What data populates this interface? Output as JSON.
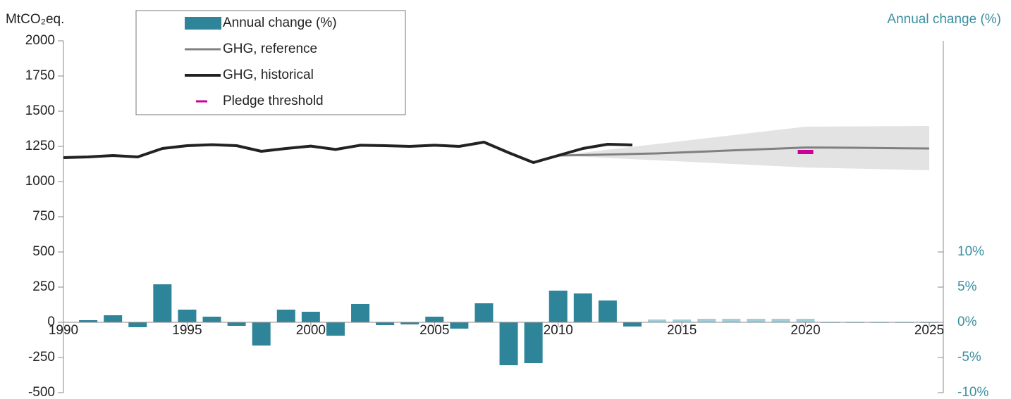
{
  "chart_data": {
    "type": "combo",
    "y_label": "MtCO₂eq.",
    "y2_label": "Annual change (%)",
    "x": [
      1990,
      1991,
      1992,
      1993,
      1994,
      1995,
      1996,
      1997,
      1998,
      1999,
      2000,
      2001,
      2002,
      2003,
      2004,
      2005,
      2006,
      2007,
      2008,
      2009,
      2010,
      2011,
      2012,
      2013,
      2014,
      2015,
      2016,
      2017,
      2018,
      2019,
      2020,
      2021,
      2022,
      2023,
      2024,
      2025
    ],
    "xlim": [
      1990,
      2025
    ],
    "xticks": [
      1990,
      1995,
      2000,
      2005,
      2010,
      2015,
      2020,
      2025
    ],
    "ylim": [
      -500,
      2000
    ],
    "yticks": [
      -500,
      -250,
      0,
      250,
      500,
      750,
      1000,
      1250,
      1500,
      1750,
      2000
    ],
    "y2lim": [
      -10,
      40
    ],
    "y2ticks": [
      {
        "value": -10,
        "label": "-10%"
      },
      {
        "value": -5,
        "label": "-5%"
      },
      {
        "value": 0,
        "label": "0%"
      },
      {
        "value": 5,
        "label": "5%"
      },
      {
        "value": 10,
        "label": "10%"
      }
    ],
    "band": {
      "color": "#e3e3e3",
      "x": [
        2010,
        2020,
        2025
      ],
      "lower": [
        1185,
        1100,
        1080
      ],
      "upper": [
        1185,
        1390,
        1395
      ]
    },
    "series": [
      {
        "name": "Annual change (%)",
        "type": "bar",
        "axis": "y2",
        "color": "#2e8499",
        "colors": [
          "#2e8499",
          "#2e8499",
          "#2e8499",
          "#2e8499",
          "#2e8499",
          "#2e8499",
          "#2e8499",
          "#2e8499",
          "#2e8499",
          "#2e8499",
          "#2e8499",
          "#2e8499",
          "#2e8499",
          "#2e8499",
          "#2e8499",
          "#2e8499",
          "#2e8499",
          "#2e8499",
          "#2e8499",
          "#2e8499",
          "#2e8499",
          "#2e8499",
          "#2e8499",
          "#2e8499",
          "#9dcfdc",
          "#9dcfdc",
          "#9dcfdc",
          "#9dcfdc",
          "#9dcfdc",
          "#9dcfdc",
          "#9dcfdc",
          "#9dcfdc",
          "#9dcfdc",
          "#9dcfdc",
          "#9dcfdc",
          "#9dcfdc"
        ],
        "values": [
          null,
          0.3,
          1.0,
          -0.7,
          5.4,
          1.8,
          0.8,
          -0.5,
          -3.3,
          1.8,
          1.5,
          -1.9,
          2.6,
          -0.4,
          -0.3,
          0.8,
          -0.9,
          2.7,
          -6.1,
          -5.8,
          4.5,
          4.1,
          3.1,
          -0.6,
          0.4,
          0.4,
          0.5,
          0.5,
          0.5,
          0.5,
          0.5,
          -0.1,
          -0.1,
          -0.1,
          -0.1,
          -0.1
        ]
      },
      {
        "name": "GHG, reference",
        "type": "line",
        "color": "#808080",
        "values": [
          null,
          null,
          null,
          null,
          null,
          null,
          null,
          null,
          null,
          null,
          null,
          null,
          null,
          null,
          null,
          null,
          null,
          null,
          null,
          null,
          1185,
          1188,
          1192,
          1196,
          1200,
          1207,
          1214,
          1221,
          1228,
          1235,
          1242,
          1241,
          1240,
          1238,
          1236,
          1235
        ]
      },
      {
        "name": "GHG, historical",
        "type": "line",
        "color": "#222222",
        "values": [
          1170,
          1175,
          1185,
          1175,
          1235,
          1255,
          1262,
          1255,
          1215,
          1235,
          1252,
          1228,
          1258,
          1255,
          1250,
          1258,
          1250,
          1280,
          1205,
          1135,
          1185,
          1235,
          1265,
          1260,
          null,
          null,
          null,
          null,
          null,
          null,
          null,
          null,
          null,
          null,
          null,
          null
        ]
      },
      {
        "name": "Pledge threshold",
        "type": "marker",
        "color": "#cc0099",
        "values": [
          null,
          null,
          null,
          null,
          null,
          null,
          null,
          null,
          null,
          null,
          null,
          null,
          null,
          null,
          null,
          null,
          null,
          null,
          null,
          null,
          null,
          null,
          null,
          null,
          null,
          null,
          null,
          null,
          null,
          null,
          1210,
          null,
          null,
          null,
          null,
          null
        ]
      }
    ]
  }
}
